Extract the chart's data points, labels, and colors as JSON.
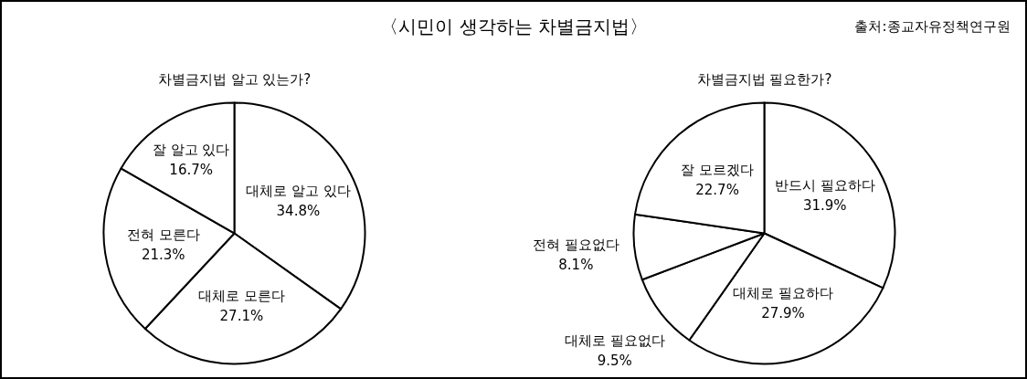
{
  "chart_data": [
    {
      "type": "other",
      "title": "〈시민이 생각하는 차별금지법〉",
      "annotations": [
        "출처:종교자유정책연구원"
      ]
    },
    {
      "type": "pie",
      "title": "차별금지법 알고 있는가?",
      "categories": [
        "대체로 알고 있다",
        "대체로 모른다",
        "전혀 모른다",
        "잘 알고 있다"
      ],
      "values": [
        34.8,
        27.1,
        21.3,
        16.7
      ],
      "value_labels": [
        "34.8%",
        "27.1%",
        "21.3%",
        "16.7%"
      ],
      "colors": [
        "#ffffff",
        "#ffffff",
        "#ffffff",
        "#ffffff"
      ]
    },
    {
      "type": "pie",
      "title": "차별금지법 필요한가?",
      "categories": [
        "반드시 필요하다",
        "대체로 필요하다",
        "대체로 필요없다",
        "전혀 필요없다",
        "잘 모르겠다"
      ],
      "values": [
        31.9,
        27.9,
        9.5,
        8.1,
        22.7
      ],
      "value_labels": [
        "31.9%",
        "27.9%",
        "9.5%",
        "8.1%",
        "22.7%"
      ],
      "colors": [
        "#ffffff",
        "#ffffff",
        "#ffffff",
        "#ffffff",
        "#ffffff"
      ]
    }
  ]
}
